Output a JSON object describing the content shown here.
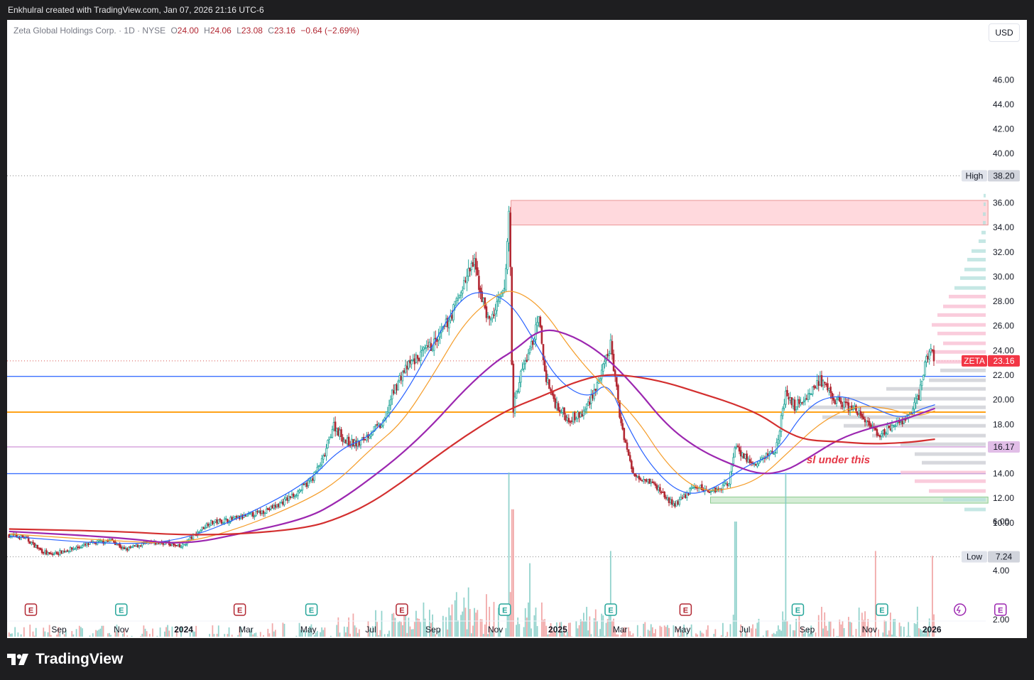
{
  "header": {
    "attribution": "Enkhulral created with TradingView.com, Jan 07, 2026 21:16 UTC-6"
  },
  "legend": {
    "symbol": "Zeta Global Holdings Corp. · 1D · NYSE",
    "o_key": "O",
    "o": "24.00",
    "h_key": "H",
    "h": "24.06",
    "l_key": "L",
    "l": "23.08",
    "c_key": "C",
    "c": "23.16",
    "change": "−0.64 (−2.69%)"
  },
  "currency": "USD",
  "footer": {
    "brand": "TradingView"
  },
  "colors": {
    "up": "#26a69a",
    "down": "#b22833",
    "ma_blue": "#2962ff",
    "ma_orange": "#f59d2a",
    "ma_purple": "#9c27b0",
    "ma_red": "#d32f2f",
    "h_blue": "#2962ff",
    "h_orange": "#ff9800",
    "h_pink": "#ce93d8",
    "zone_red": "#ffcdd2",
    "zone_green": "#c8e6c9",
    "annotation": "#e53948"
  },
  "chart_data": {
    "type": "candlestick",
    "ticker": "ZETA",
    "timeframe": "1D",
    "ylim": [
      0,
      48
    ],
    "price_ticks": [
      "46.00",
      "44.00",
      "42.00",
      "40.00",
      "36.00",
      "34.00",
      "32.00",
      "30.00",
      "28.00",
      "26.00",
      "24.00",
      "22.00",
      "20.00",
      "18.00",
      "14.00",
      "12.00",
      "10.00"
    ],
    "volume_ticks": [
      "6.00",
      "4.00",
      "2.00"
    ],
    "time_labels": [
      {
        "text": "Sep",
        "m": 0
      },
      {
        "text": "Nov",
        "m": 2
      },
      {
        "text": "2024",
        "m": 4,
        "bold": true
      },
      {
        "text": "Mar",
        "m": 6
      },
      {
        "text": "May",
        "m": 8
      },
      {
        "text": "Jul",
        "m": 10
      },
      {
        "text": "Sep",
        "m": 12
      },
      {
        "text": "Nov",
        "m": 14
      },
      {
        "text": "2025",
        "m": 16,
        "bold": true
      },
      {
        "text": "Mar",
        "m": 18
      },
      {
        "text": "May",
        "m": 20
      },
      {
        "text": "Jul",
        "m": 22
      },
      {
        "text": "Sep",
        "m": 24
      },
      {
        "text": "Nov",
        "m": 26
      },
      {
        "text": "2026",
        "m": 28,
        "bold": true
      }
    ],
    "high_label": "High",
    "high": "38.20",
    "low_label": "Low",
    "low": "7.24",
    "last_label": "ZETA",
    "last": "23.16",
    "level_tag": "16.17",
    "horizontal_lines": [
      {
        "price": 21.9,
        "color": "blue"
      },
      {
        "price": 19.0,
        "color": "orange"
      },
      {
        "price": 16.17,
        "color": "pink"
      },
      {
        "price": 14.0,
        "color": "blue"
      }
    ],
    "zones": [
      {
        "m0": 14.5,
        "m1": 29.8,
        "p0": 34.2,
        "p1": 36.2,
        "color": "red"
      },
      {
        "m0": 20.9,
        "m1": 29.8,
        "p0": 11.6,
        "p1": 12.1,
        "color": "green"
      }
    ],
    "annotation": "sl under this",
    "earnings_markers": [
      {
        "m": -0.9,
        "t": "E",
        "type": "down"
      },
      {
        "m": 2.0,
        "t": "E",
        "type": "up"
      },
      {
        "m": 5.8,
        "t": "E",
        "type": "down"
      },
      {
        "m": 8.1,
        "t": "E",
        "type": "up"
      },
      {
        "m": 11.0,
        "t": "E",
        "type": "down"
      },
      {
        "m": 14.3,
        "t": "E",
        "type": "up"
      },
      {
        "m": 17.7,
        "t": "E",
        "type": "up"
      },
      {
        "m": 20.1,
        "t": "E",
        "type": "down"
      },
      {
        "m": 23.7,
        "t": "E",
        "type": "up"
      },
      {
        "m": 26.4,
        "t": "E",
        "type": "up"
      },
      {
        "m": 30.2,
        "t": "E",
        "type": "upcoming"
      }
    ],
    "price_path": [
      [
        -1.6,
        9.0
      ],
      [
        -1.1,
        8.8
      ],
      [
        -0.6,
        7.8
      ],
      [
        -0.3,
        7.4
      ],
      [
        0.3,
        7.8
      ],
      [
        1.0,
        8.3
      ],
      [
        1.7,
        8.6
      ],
      [
        2.1,
        7.8
      ],
      [
        2.7,
        8.3
      ],
      [
        3.4,
        8.4
      ],
      [
        3.9,
        8.0
      ],
      [
        4.3,
        8.9
      ],
      [
        4.8,
        10.0
      ],
      [
        5.6,
        10.3
      ],
      [
        6.4,
        10.8
      ],
      [
        7.0,
        11.4
      ],
      [
        7.6,
        12.4
      ],
      [
        8.1,
        13.5
      ],
      [
        8.5,
        15.3
      ],
      [
        8.8,
        18.0
      ],
      [
        9.2,
        16.6
      ],
      [
        9.6,
        16.4
      ],
      [
        10.1,
        17.6
      ],
      [
        10.4,
        18.0
      ],
      [
        10.7,
        20.5
      ],
      [
        11.0,
        22.1
      ],
      [
        11.3,
        23.0
      ],
      [
        11.7,
        23.8
      ],
      [
        12.2,
        25.0
      ],
      [
        12.6,
        27.0
      ],
      [
        13.0,
        29.5
      ],
      [
        13.3,
        31.2
      ],
      [
        13.6,
        28.0
      ],
      [
        13.8,
        26.3
      ],
      [
        14.1,
        27.8
      ],
      [
        14.3,
        29.0
      ],
      [
        14.45,
        36.0
      ],
      [
        14.55,
        19.0
      ],
      [
        14.8,
        22.0
      ],
      [
        15.1,
        24.0
      ],
      [
        15.4,
        26.5
      ],
      [
        15.6,
        22.0
      ],
      [
        15.9,
        19.8
      ],
      [
        16.3,
        18.5
      ],
      [
        16.8,
        18.8
      ],
      [
        17.4,
        22.0
      ],
      [
        17.7,
        24.5
      ],
      [
        18.0,
        18.5
      ],
      [
        18.4,
        14.0
      ],
      [
        18.9,
        13.5
      ],
      [
        19.3,
        12.6
      ],
      [
        19.7,
        11.4
      ],
      [
        20.0,
        12.0
      ],
      [
        20.4,
        13.0
      ],
      [
        20.8,
        12.6
      ],
      [
        21.2,
        12.8
      ],
      [
        21.5,
        13.4
      ],
      [
        21.7,
        16.5
      ],
      [
        21.9,
        15.6
      ],
      [
        22.3,
        14.6
      ],
      [
        22.7,
        15.5
      ],
      [
        23.0,
        16.0
      ],
      [
        23.3,
        20.4
      ],
      [
        23.6,
        19.5
      ],
      [
        24.0,
        20.3
      ],
      [
        24.4,
        21.6
      ],
      [
        24.8,
        20.2
      ],
      [
        25.1,
        19.7
      ],
      [
        25.5,
        19.2
      ],
      [
        25.9,
        18.3
      ],
      [
        26.3,
        16.8
      ],
      [
        26.6,
        17.8
      ],
      [
        27.0,
        18.0
      ],
      [
        27.3,
        18.9
      ],
      [
        27.6,
        20.4
      ],
      [
        27.8,
        23.3
      ],
      [
        28.0,
        24.0
      ],
      [
        28.1,
        23.16
      ]
    ],
    "moving_averages": [
      {
        "name": "",
        "color": "blue",
        "points": [
          [
            -1.6,
            8.9
          ],
          [
            2,
            8.2
          ],
          [
            4,
            8.6
          ],
          [
            6,
            10.6
          ],
          [
            8,
            13.3
          ],
          [
            9,
            16.0
          ],
          [
            10,
            17.0
          ],
          [
            11,
            20.0
          ],
          [
            12,
            24.5
          ],
          [
            13,
            28.8
          ],
          [
            14,
            28.6
          ],
          [
            14.6,
            27.5
          ],
          [
            15.2,
            25.0
          ],
          [
            16,
            21.5
          ],
          [
            17,
            20.0
          ],
          [
            17.6,
            21.6
          ],
          [
            18.2,
            18.0
          ],
          [
            19,
            14.5
          ],
          [
            20,
            12.2
          ],
          [
            21,
            12.7
          ],
          [
            22,
            14.6
          ],
          [
            23,
            15.6
          ],
          [
            24,
            19.5
          ],
          [
            25,
            20.5
          ],
          [
            26,
            19.5
          ],
          [
            27,
            18.4
          ],
          [
            27.6,
            19.2
          ],
          [
            28.1,
            19.6
          ]
        ]
      },
      {
        "name": "",
        "color": "orange",
        "points": [
          [
            -1.6,
            9.1
          ],
          [
            2,
            8.5
          ],
          [
            4,
            8.3
          ],
          [
            6,
            9.7
          ],
          [
            8,
            11.9
          ],
          [
            9,
            13.5
          ],
          [
            10,
            16.0
          ],
          [
            11,
            18.1
          ],
          [
            12,
            22.0
          ],
          [
            13,
            26.3
          ],
          [
            14,
            28.5
          ],
          [
            14.6,
            29.0
          ],
          [
            15.5,
            27.5
          ],
          [
            16.5,
            23.8
          ],
          [
            17.5,
            21.0
          ],
          [
            18.5,
            18.6
          ],
          [
            19.5,
            14.7
          ],
          [
            20.5,
            12.6
          ],
          [
            21.5,
            12.7
          ],
          [
            22.5,
            13.6
          ],
          [
            23.5,
            16.0
          ],
          [
            24.5,
            18.3
          ],
          [
            25.5,
            19.5
          ],
          [
            26.5,
            19.4
          ],
          [
            27.5,
            18.6
          ],
          [
            28.1,
            19.1
          ]
        ]
      },
      {
        "name": "",
        "color": "purple",
        "points": [
          [
            -1.6,
            9.3
          ],
          [
            2,
            8.8
          ],
          [
            4,
            8.2
          ],
          [
            6,
            9.2
          ],
          [
            8,
            10.4
          ],
          [
            9,
            11.8
          ],
          [
            10,
            13.6
          ],
          [
            11,
            15.6
          ],
          [
            12,
            18.0
          ],
          [
            13,
            20.8
          ],
          [
            14,
            23.1
          ],
          [
            14.6,
            24.0
          ],
          [
            15.5,
            25.9
          ],
          [
            16.5,
            25.2
          ],
          [
            17.5,
            23.6
          ],
          [
            18.5,
            21.0
          ],
          [
            19.5,
            17.9
          ],
          [
            20.5,
            16.0
          ],
          [
            21.5,
            14.8
          ],
          [
            22.5,
            13.9
          ],
          [
            23.3,
            14.2
          ],
          [
            24,
            15.2
          ],
          [
            25,
            16.8
          ],
          [
            26,
            17.7
          ],
          [
            27,
            18.3
          ],
          [
            28.1,
            19.3
          ]
        ]
      },
      {
        "name": "",
        "color": "red",
        "points": [
          [
            -1.6,
            9.5
          ],
          [
            2,
            9.3
          ],
          [
            4,
            9.0
          ],
          [
            6,
            9.1
          ],
          [
            8,
            9.6
          ],
          [
            9,
            10.4
          ],
          [
            10,
            11.6
          ],
          [
            11,
            13.3
          ],
          [
            12,
            15.2
          ],
          [
            13,
            17.0
          ],
          [
            14,
            18.6
          ],
          [
            14.6,
            19.4
          ],
          [
            15.5,
            20.3
          ],
          [
            16.5,
            21.4
          ],
          [
            17.5,
            22.1
          ],
          [
            18.5,
            21.9
          ],
          [
            19.5,
            21.4
          ],
          [
            20.5,
            20.6
          ],
          [
            21.5,
            19.8
          ],
          [
            22.5,
            18.8
          ],
          [
            23.3,
            17.4
          ],
          [
            24,
            16.7
          ],
          [
            25,
            16.6
          ],
          [
            26,
            16.4
          ],
          [
            27,
            16.5
          ],
          [
            27.5,
            16.6
          ],
          [
            28.1,
            16.8
          ]
        ]
      }
    ],
    "volume_profile": [
      {
        "p": 36.5,
        "w": 3,
        "c": "u"
      },
      {
        "p": 35.8,
        "w": 3,
        "c": "u"
      },
      {
        "p": 35.0,
        "w": 4,
        "c": "u"
      },
      {
        "p": 34.3,
        "w": 4,
        "c": "u"
      },
      {
        "p": 33.5,
        "w": 6,
        "c": "u"
      },
      {
        "p": 32.8,
        "w": 10,
        "c": "u"
      },
      {
        "p": 32.0,
        "w": 20,
        "c": "u"
      },
      {
        "p": 31.3,
        "w": 26,
        "c": "u"
      },
      {
        "p": 30.5,
        "w": 30,
        "c": "u"
      },
      {
        "p": 29.8,
        "w": 36,
        "c": "u"
      },
      {
        "p": 29.0,
        "w": 44,
        "c": "u"
      },
      {
        "p": 28.3,
        "w": 52,
        "c": "m"
      },
      {
        "p": 27.5,
        "w": 60,
        "c": "m"
      },
      {
        "p": 26.8,
        "w": 68,
        "c": "m"
      },
      {
        "p": 26.0,
        "w": 76,
        "c": "m"
      },
      {
        "p": 25.3,
        "w": 68,
        "c": "m"
      },
      {
        "p": 24.5,
        "w": 60,
        "c": "m"
      },
      {
        "p": 23.8,
        "w": 84,
        "c": "m"
      },
      {
        "p": 23.0,
        "w": 70,
        "c": "m"
      },
      {
        "p": 22.3,
        "w": 64,
        "c": "g"
      },
      {
        "p": 21.5,
        "w": 80,
        "c": "g"
      },
      {
        "p": 20.8,
        "w": 140,
        "c": "g"
      },
      {
        "p": 20.0,
        "w": 210,
        "c": "g"
      },
      {
        "p": 19.3,
        "w": 250,
        "c": "g"
      },
      {
        "p": 18.5,
        "w": 230,
        "c": "g"
      },
      {
        "p": 17.8,
        "w": 200,
        "c": "g"
      },
      {
        "p": 17.0,
        "w": 160,
        "c": "g"
      },
      {
        "p": 16.3,
        "w": 120,
        "c": "g"
      },
      {
        "p": 15.5,
        "w": 100,
        "c": "g"
      },
      {
        "p": 14.8,
        "w": 90,
        "c": "g"
      },
      {
        "p": 14.0,
        "w": 120,
        "c": "m"
      },
      {
        "p": 13.3,
        "w": 100,
        "c": "m"
      },
      {
        "p": 12.5,
        "w": 80,
        "c": "m"
      },
      {
        "p": 11.8,
        "w": 60,
        "c": "u"
      },
      {
        "p": 11.0,
        "w": 30,
        "c": "u"
      }
    ]
  }
}
